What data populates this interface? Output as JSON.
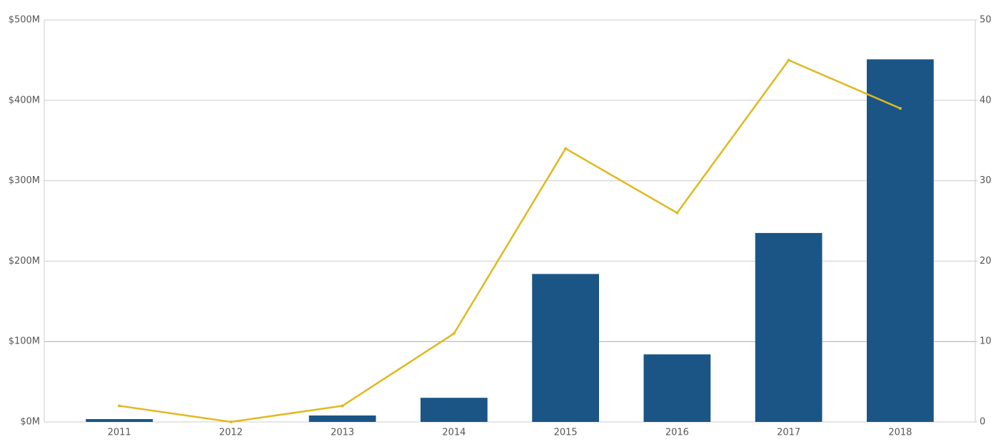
{
  "chart_data": {
    "type": "bar_line",
    "categories": [
      "2011",
      "2012",
      "2013",
      "2014",
      "2015",
      "2016",
      "2017",
      "2018"
    ],
    "series": [
      {
        "type": "bar",
        "color": "#1a5586",
        "values": [
          3500000,
          0,
          8000000,
          30000000,
          184000000,
          84000000,
          235000000,
          451000000
        ]
      },
      {
        "type": "line",
        "axis": "y2",
        "color": "#e0b81e",
        "values": [
          2,
          0,
          2,
          11,
          34,
          26,
          45,
          39
        ]
      }
    ],
    "ylim": [
      0,
      500000000
    ],
    "yticks": [
      {
        "value": 0,
        "label": "$0M"
      },
      {
        "value": 100000000,
        "label": "$100M"
      },
      {
        "value": 200000000,
        "label": "$200M"
      },
      {
        "value": 300000000,
        "label": "$300M"
      },
      {
        "value": 400000000,
        "label": "$400M"
      },
      {
        "value": 500000000,
        "label": "$500M"
      }
    ],
    "y2lim": [
      0,
      50
    ],
    "y2ticks": [
      0,
      10,
      20,
      30,
      40,
      50
    ],
    "grid": true
  }
}
